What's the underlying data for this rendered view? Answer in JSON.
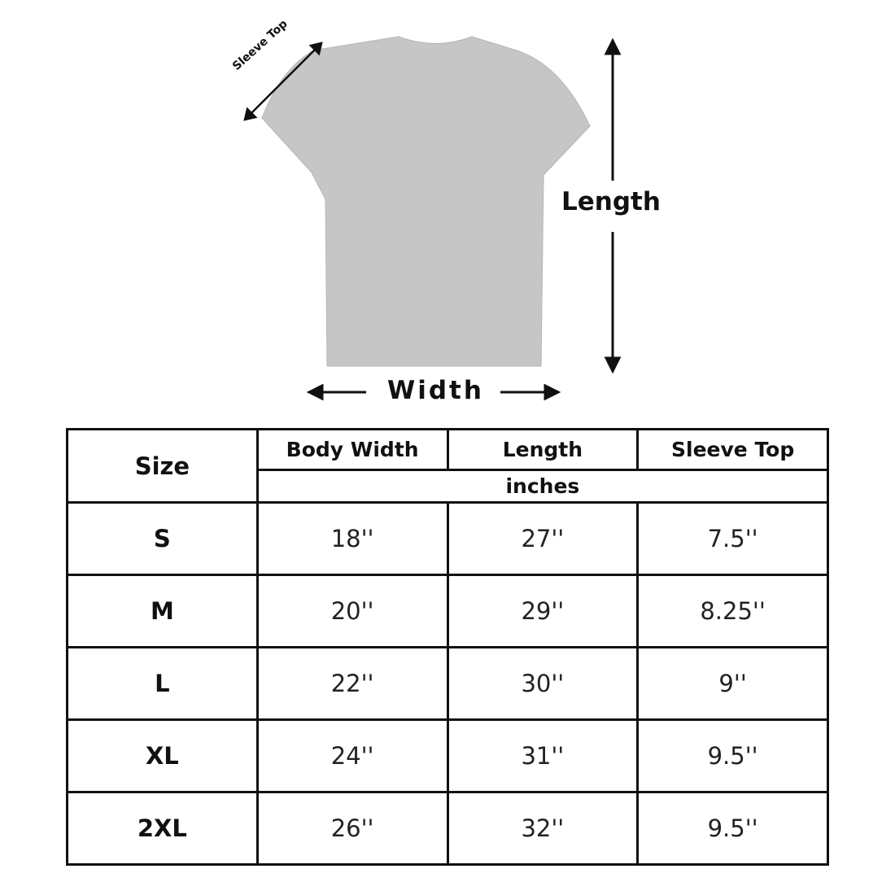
{
  "diagram": {
    "length_label": "Length",
    "width_label": "Width",
    "sleeve_label": "Sleeve Top",
    "shirt_color": "#c6c6c6"
  },
  "table": {
    "size_header": "Size",
    "columns": [
      "Body Width",
      "Length",
      "Sleeve Top"
    ],
    "unit": "inches",
    "rows": [
      {
        "size": "S",
        "values": [
          "18''",
          "27''",
          "7.5''"
        ]
      },
      {
        "size": "M",
        "values": [
          "20''",
          "29''",
          "8.25''"
        ]
      },
      {
        "size": "L",
        "values": [
          "22''",
          "30''",
          "9''"
        ]
      },
      {
        "size": "XL",
        "values": [
          "24''",
          "31''",
          "9.5''"
        ]
      },
      {
        "size": "2XL",
        "values": [
          "26''",
          "32''",
          "9.5''"
        ]
      }
    ]
  }
}
